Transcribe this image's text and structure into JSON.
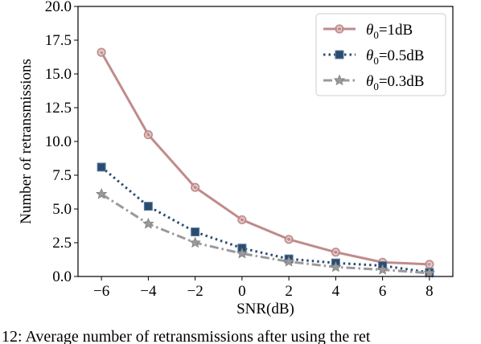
{
  "chart_data": {
    "type": "line",
    "xlabel": "SNR(dB)",
    "ylabel": "Number of retransmissions",
    "xlim": [
      -7,
      9
    ],
    "ylim": [
      0,
      20
    ],
    "x": [
      -6,
      -4,
      -2,
      0,
      2,
      4,
      6,
      8
    ],
    "x_tick_labels": [
      "−6",
      "−4",
      "−2",
      "0",
      "2",
      "4",
      "6",
      "8"
    ],
    "y_ticks": [
      0,
      2.5,
      5,
      7.5,
      10,
      12.5,
      15,
      17.5,
      20
    ],
    "y_tick_labels": [
      "0.0",
      "2.5",
      "5.0",
      "7.5",
      "10.0",
      "12.5",
      "15.0",
      "17.5",
      "20.0"
    ],
    "grid": false,
    "legend_position": "top-right",
    "series": [
      {
        "name": "θ0=1dB",
        "legend_prefix": "θ",
        "legend_sub": "0",
        "legend_suffix": "=1dB",
        "color": "#c08b8b",
        "marker": "circle",
        "line_style": "solid",
        "values": [
          16.6,
          10.5,
          6.6,
          4.2,
          2.75,
          1.8,
          1.05,
          0.9
        ]
      },
      {
        "name": "θ0=0.5dB",
        "legend_prefix": "θ",
        "legend_sub": "0",
        "legend_suffix": "=0.5dB",
        "color": "#2b4c6f",
        "marker": "square",
        "line_style": "dotted",
        "values": [
          8.1,
          5.2,
          3.3,
          2.1,
          1.3,
          1.0,
          0.8,
          0.3
        ]
      },
      {
        "name": "θ0=0.3dB",
        "legend_prefix": "θ",
        "legend_sub": "0",
        "legend_suffix": "=0.3dB",
        "color": "#9a9a9a",
        "marker": "star",
        "line_style": "dashdot",
        "values": [
          6.1,
          3.9,
          2.5,
          1.7,
          1.1,
          0.7,
          0.5,
          0.25
        ]
      }
    ]
  },
  "caption": "12: Average number of retransmissions after using the ret"
}
